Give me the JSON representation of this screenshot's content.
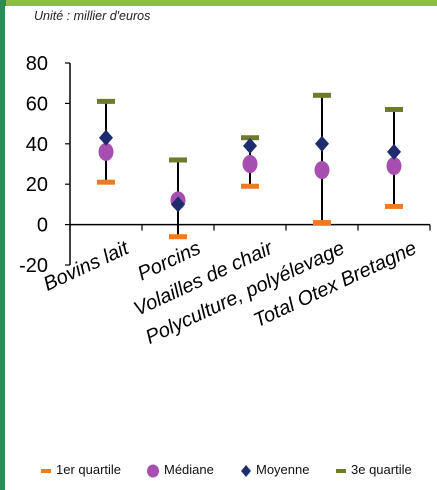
{
  "unit_label": "Unité : millier d'euros",
  "colors": {
    "q1": "#f07a22",
    "median": "#a64fb0",
    "mean": "#1f2d6e",
    "q3": "#6f7a2c",
    "whisker": "#000000",
    "left_border": "#2e8b57",
    "top_band": "#8cbf3f"
  },
  "chart_data": {
    "type": "scatter",
    "categories": [
      "Bovins lait",
      "Porcins",
      "Volailles de chair",
      "Polyculture, polyélevage",
      "Total Otex Bretagne"
    ],
    "ylim": [
      -20,
      80
    ],
    "yticks": [
      "80",
      "60",
      "40",
      "20",
      "0",
      "-20"
    ],
    "yticks_values": [
      80,
      60,
      40,
      20,
      0,
      -20
    ],
    "series": [
      {
        "name": "1er quartile",
        "marker": "dash",
        "values": [
          21,
          -6,
          19,
          1,
          9
        ]
      },
      {
        "name": "Médiane",
        "marker": "circle",
        "values": [
          36,
          12,
          30,
          27,
          29
        ]
      },
      {
        "name": "Moyenne",
        "marker": "diamond",
        "values": [
          43,
          10,
          39,
          40,
          36
        ]
      },
      {
        "name": "3e quartile",
        "marker": "dash",
        "values": [
          61,
          32,
          43,
          64,
          57
        ]
      }
    ],
    "legend_position": "bottom"
  }
}
